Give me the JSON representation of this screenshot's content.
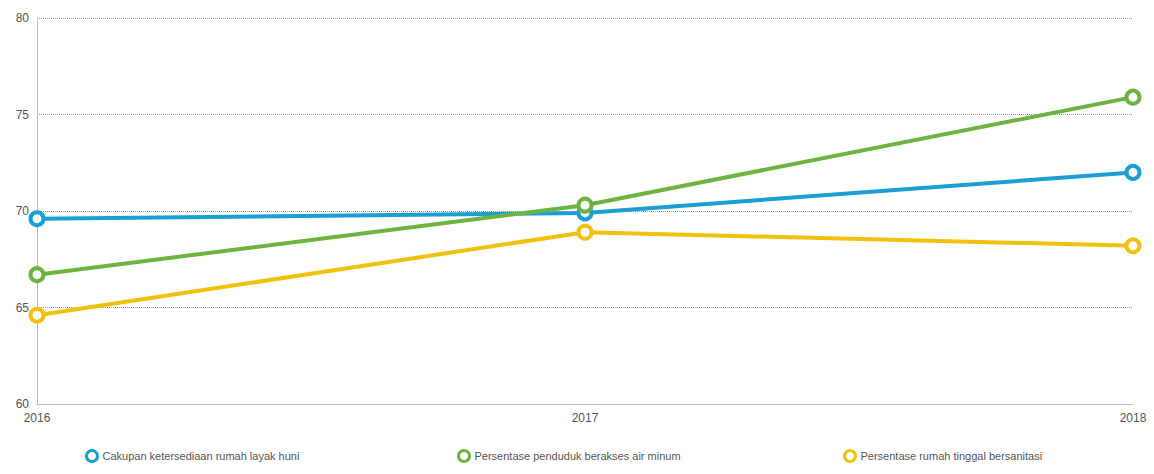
{
  "chart_data": {
    "type": "line",
    "categories": [
      "2016",
      "2017",
      "2018"
    ],
    "series": [
      {
        "name": "Cakupan ketersediaan rumah layak huni",
        "color": "#1a9fd4",
        "values": [
          69.6,
          69.9,
          72.0
        ]
      },
      {
        "name": "Persentase penduduk berakses air minum",
        "color": "#6db33f",
        "values": [
          66.7,
          70.3,
          75.9
        ]
      },
      {
        "name": "Persentase rumah tinggal bersanitasi",
        "color": "#f2c10f",
        "values": [
          64.6,
          68.9,
          68.2
        ]
      }
    ],
    "ylim": [
      60,
      80
    ],
    "yticks": [
      60,
      65,
      70,
      75,
      80
    ],
    "grid": true,
    "legend": "bottom",
    "marker": "circle"
  }
}
